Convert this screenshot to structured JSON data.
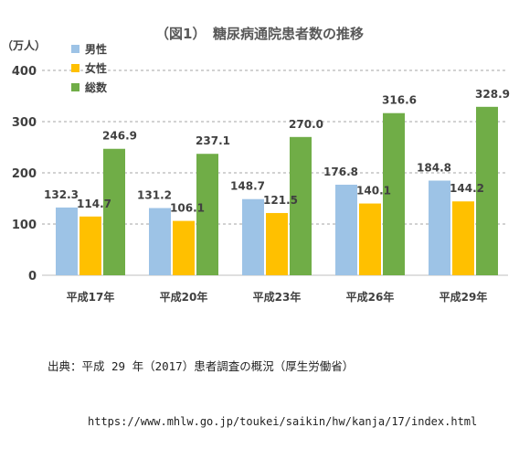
{
  "chart_data": {
    "type": "bar",
    "title": "（図1）　糖尿病通院患者数の推移",
    "unit_label": "（万人）",
    "categories": [
      "平成17年",
      "平成20年",
      "平成23年",
      "平成26年",
      "平成29年"
    ],
    "series": [
      {
        "name": "男性",
        "color": "#9DC3E6",
        "values": [
          132.3,
          131.2,
          148.7,
          176.8,
          184.8
        ]
      },
      {
        "name": "女性",
        "color": "#FFC000",
        "values": [
          114.7,
          106.1,
          121.5,
          140.1,
          144.2
        ]
      },
      {
        "name": "総数",
        "color": "#70AD47",
        "values": [
          246.9,
          237.1,
          270.0,
          316.6,
          328.9
        ]
      }
    ],
    "ylim": [
      0,
      400
    ],
    "yticks": [
      0,
      100,
      200,
      300,
      400
    ],
    "grid": true,
    "legend_position": "top-left"
  },
  "source": {
    "line1": "出典：平成 29 年（2017）患者調査の概況（厚生労働省）",
    "line2": "https://www.mhlw.go.jp/toukei/saikin/hw/kanja/17/index.html"
  }
}
